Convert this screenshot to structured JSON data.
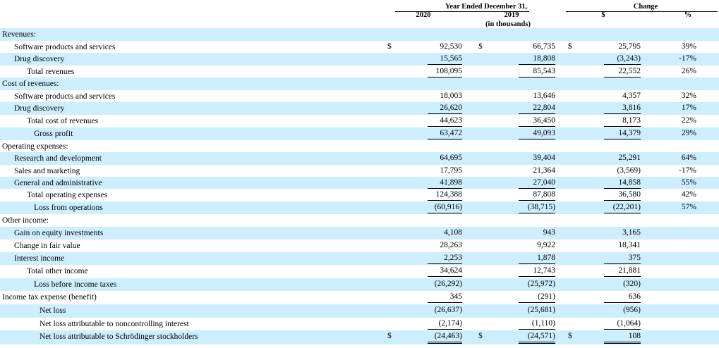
{
  "header": {
    "period_title": "Year Ended December 31,",
    "col_2020": "2020",
    "col_2019": "2019",
    "units": "(in thousands)",
    "change_title": "Change",
    "col_dollar": "$",
    "col_pct": "%"
  },
  "currency_symbol": "$",
  "rows": [
    {
      "label": "Revenues:",
      "indent": 0,
      "shaded": true
    },
    {
      "label": "Software products and services",
      "indent": 1,
      "v2020": "92,530",
      "v2019": "66,735",
      "chg": "25,795",
      "pct": "39%",
      "dollar": true
    },
    {
      "label": "Drug discovery",
      "indent": 1,
      "v2020": "15,565",
      "v2019": "18,808",
      "chg": "(3,243)",
      "pct": "-17%",
      "shaded": true,
      "ul": true
    },
    {
      "label": "Total revenues",
      "indent": 2,
      "v2020": "108,095",
      "v2019": "85,543",
      "chg": "22,552",
      "pct": "26%",
      "ul": true
    },
    {
      "label": "Cost of revenues:",
      "indent": 0,
      "shaded": true
    },
    {
      "label": "Software products and services",
      "indent": 1,
      "v2020": "18,003",
      "v2019": "13,646",
      "chg": "4,357",
      "pct": "32%"
    },
    {
      "label": "Drug discovery",
      "indent": 1,
      "v2020": "26,620",
      "v2019": "22,804",
      "chg": "3,816",
      "pct": "17%",
      "shaded": true,
      "ul": true
    },
    {
      "label": "Total cost of revenues",
      "indent": 2,
      "v2020": "44,623",
      "v2019": "36,450",
      "chg": "8,173",
      "pct": "22%",
      "ul": true
    },
    {
      "label": "Gross profit",
      "indent": 3,
      "v2020": "63,472",
      "v2019": "49,093",
      "chg": "14,379",
      "pct": "29%",
      "shaded": true,
      "ul": true
    },
    {
      "label": "Operating expenses:",
      "indent": 0
    },
    {
      "label": "Research and development",
      "indent": 1,
      "v2020": "64,695",
      "v2019": "39,404",
      "chg": "25,291",
      "pct": "64%",
      "shaded": true
    },
    {
      "label": "Sales and marketing",
      "indent": 1,
      "v2020": "17,795",
      "v2019": "21,364",
      "chg": "(3,569)",
      "pct": "-17%"
    },
    {
      "label": "General and administrative",
      "indent": 1,
      "v2020": "41,898",
      "v2019": "27,040",
      "chg": "14,858",
      "pct": "55%",
      "shaded": true,
      "ul": true
    },
    {
      "label": "Total operating expenses",
      "indent": 2,
      "v2020": "124,388",
      "v2019": "87,808",
      "chg": "36,580",
      "pct": "42%",
      "ul": true
    },
    {
      "label": "Loss from operations",
      "indent": 3,
      "v2020": "(60,916)",
      "v2019": "(38,715)",
      "chg": "(22,201)",
      "pct": "57%",
      "shaded": true,
      "ul": true
    },
    {
      "label": "Other income:",
      "indent": 0
    },
    {
      "label": "Gain on equity investments",
      "indent": 1,
      "v2020": "4,108",
      "v2019": "943",
      "chg": "3,165",
      "pct": "",
      "shaded": true
    },
    {
      "label": "Change in fair value",
      "indent": 1,
      "v2020": "28,263",
      "v2019": "9,922",
      "chg": "18,341",
      "pct": ""
    },
    {
      "label": "Interest income",
      "indent": 1,
      "v2020": "2,253",
      "v2019": "1,878",
      "chg": "375",
      "pct": "",
      "shaded": true,
      "ul": true
    },
    {
      "label": "Total other income",
      "indent": 2,
      "v2020": "34,624",
      "v2019": "12,743",
      "chg": "21,881",
      "pct": "",
      "ul": true
    },
    {
      "label": "Loss before income taxes",
      "indent": 3,
      "v2020": "(26,292)",
      "v2019": "(25,972)",
      "chg": "(320)",
      "pct": "",
      "shaded": true
    },
    {
      "label": "Income tax expense (benefit)",
      "indent": 0,
      "v2020": "345",
      "v2019": "(291)",
      "chg": "636",
      "pct": "",
      "ul": true
    },
    {
      "label": "Net loss",
      "indent": 4,
      "v2020": "(26,637)",
      "v2019": "(25,681)",
      "chg": "(956)",
      "pct": "",
      "shaded": true
    },
    {
      "label": "Net loss attributable to noncontrolling interest",
      "indent": 4,
      "v2020": "(2,174)",
      "v2019": "(1,110)",
      "chg": "(1,064)",
      "pct": "",
      "ul": true
    },
    {
      "label": "Net loss attributable to Schrödinger stockholders",
      "indent": 4,
      "v2020": "(24,463)",
      "v2019": "(24,571)",
      "chg": "108",
      "pct": "",
      "shaded": true,
      "dul": true,
      "dollar": true
    }
  ]
}
